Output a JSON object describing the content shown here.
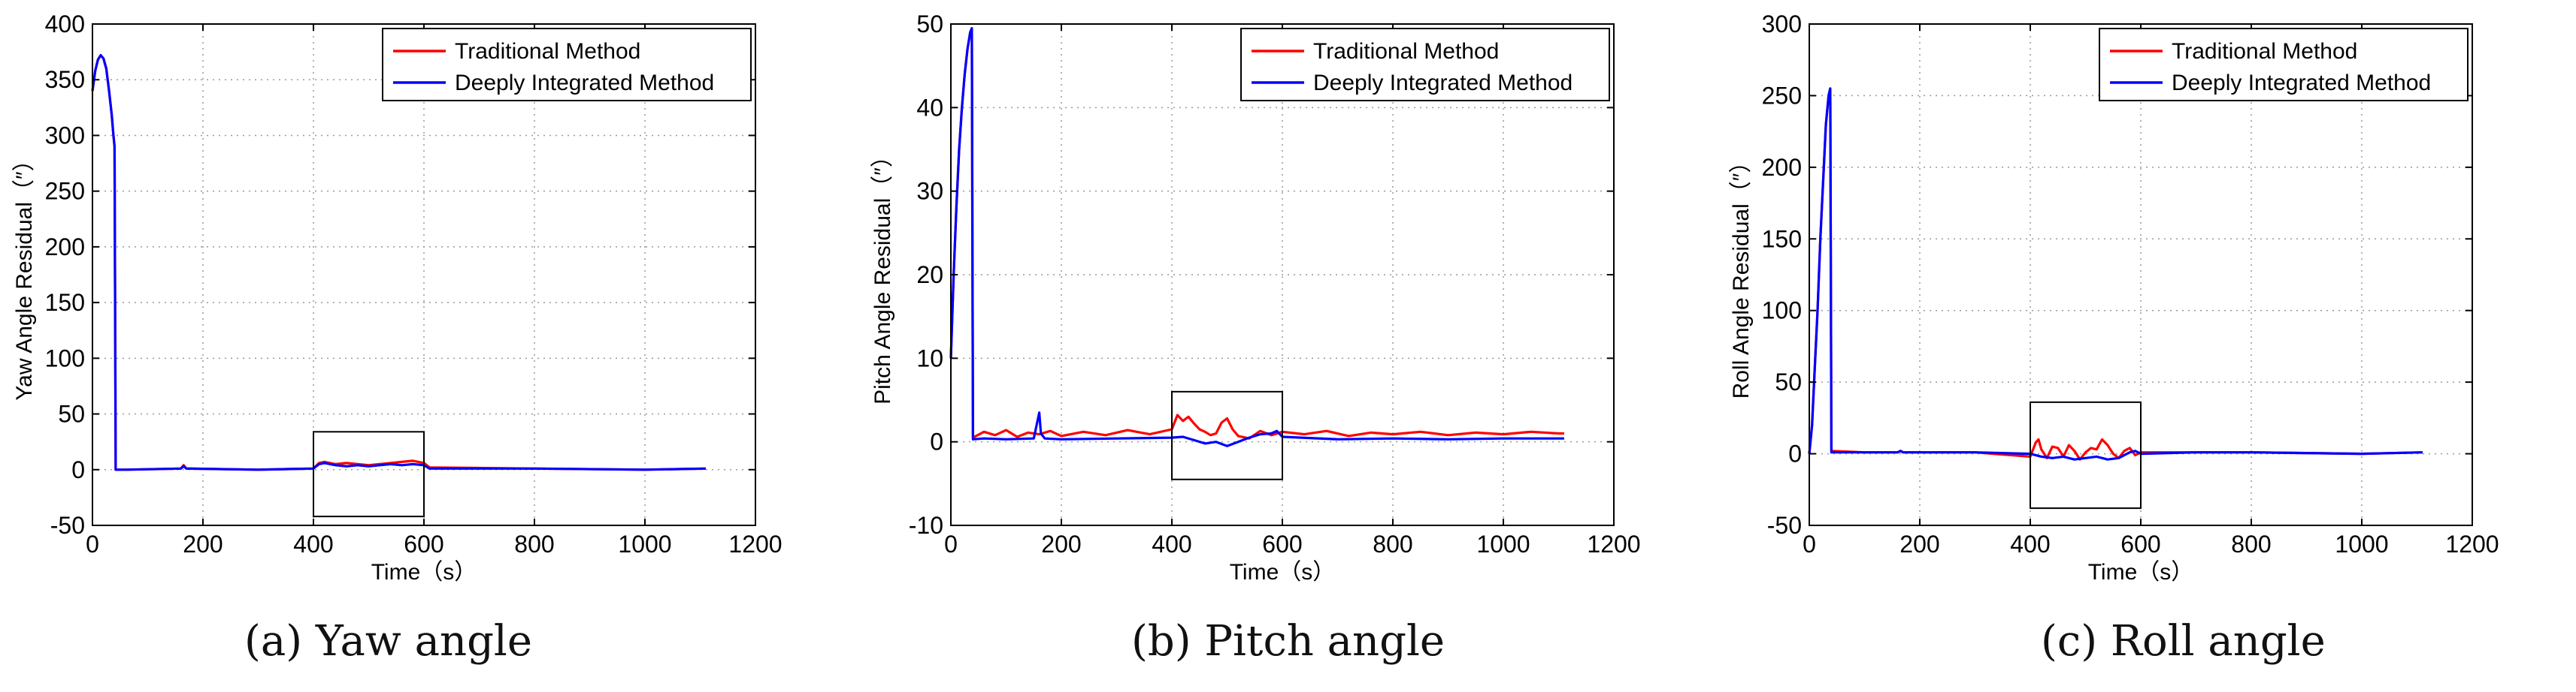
{
  "chart_data": [
    {
      "type": "line",
      "title": "",
      "xlabel": "Time（s）",
      "ylabel": "Yaw Angle Residual（″）",
      "xlim": [
        0,
        1200
      ],
      "ylim": [
        -50,
        400
      ],
      "xticks": [
        0,
        200,
        400,
        600,
        800,
        1000,
        1200
      ],
      "yticks": [
        -50,
        0,
        50,
        100,
        150,
        200,
        250,
        300,
        350,
        400
      ],
      "grid": true,
      "legend_position": "top-right",
      "zoom_box": {
        "x": [
          400,
          600
        ],
        "y": [
          -42,
          34
        ]
      },
      "caption": "(a)  Yaw angle",
      "series": [
        {
          "name": "Traditional Method",
          "color": "#ff0000",
          "x": [
            0,
            5,
            10,
            15,
            20,
            25,
            30,
            35,
            38,
            40,
            42,
            60,
            160,
            165,
            170,
            300,
            400,
            410,
            420,
            440,
            460,
            480,
            500,
            520,
            540,
            560,
            580,
            600,
            610,
            800,
            1000,
            1110
          ],
          "y": [
            340,
            358,
            368,
            372,
            369,
            360,
            340,
            318,
            300,
            290,
            0,
            0,
            1,
            4,
            1,
            0,
            1,
            6,
            7,
            5,
            6,
            5,
            4,
            5,
            6,
            7,
            8,
            6,
            2,
            1,
            0,
            1
          ]
        },
        {
          "name": "Deeply Integrated Method",
          "color": "#0000ff",
          "x": [
            0,
            5,
            10,
            15,
            20,
            25,
            30,
            35,
            38,
            40,
            42,
            60,
            160,
            165,
            170,
            300,
            400,
            410,
            420,
            440,
            460,
            480,
            500,
            520,
            540,
            560,
            580,
            600,
            610,
            800,
            1000,
            1110
          ],
          "y": [
            340,
            358,
            368,
            372,
            369,
            360,
            340,
            318,
            300,
            290,
            0,
            0,
            1,
            3,
            1,
            0,
            1,
            5,
            6,
            4,
            3,
            4,
            3,
            4,
            5,
            4,
            5,
            4,
            1,
            1,
            0,
            1
          ]
        }
      ]
    },
    {
      "type": "line",
      "title": "",
      "xlabel": "Time（s）",
      "ylabel": "Pitch Angle Residual（″）",
      "xlim": [
        0,
        1200
      ],
      "ylim": [
        -10,
        50
      ],
      "xticks": [
        0,
        200,
        400,
        600,
        800,
        1000,
        1200
      ],
      "yticks": [
        -10,
        0,
        10,
        20,
        30,
        40,
        50
      ],
      "grid": true,
      "legend_position": "top-right",
      "zoom_box": {
        "x": [
          400,
          600
        ],
        "y": [
          -4.5,
          6
        ]
      },
      "caption": "(b)  Pitch angle",
      "series": [
        {
          "name": "Traditional Method",
          "color": "#ff0000",
          "x": [
            0,
            5,
            10,
            15,
            20,
            25,
            30,
            35,
            38,
            40,
            60,
            80,
            100,
            120,
            140,
            160,
            180,
            200,
            240,
            280,
            320,
            360,
            400,
            410,
            420,
            430,
            440,
            450,
            460,
            470,
            480,
            490,
            500,
            510,
            520,
            540,
            560,
            580,
            600,
            640,
            680,
            720,
            760,
            800,
            850,
            900,
            950,
            1000,
            1050,
            1100,
            1110
          ],
          "y": [
            10,
            20,
            28,
            35,
            40,
            44,
            47,
            49,
            49.5,
            0.5,
            1.2,
            0.8,
            1.4,
            0.6,
            1.1,
            0.9,
            1.3,
            0.7,
            1.2,
            0.8,
            1.4,
            0.9,
            1.5,
            3.2,
            2.5,
            3.0,
            2.2,
            1.5,
            1.2,
            0.8,
            1.0,
            2.3,
            2.8,
            1.5,
            0.7,
            0.4,
            1.3,
            0.8,
            1.2,
            0.9,
            1.3,
            0.7,
            1.1,
            0.9,
            1.2,
            0.8,
            1.1,
            0.9,
            1.2,
            1.0,
            1.0
          ]
        },
        {
          "name": "Deeply Integrated Method",
          "color": "#0000ff",
          "x": [
            0,
            5,
            10,
            15,
            20,
            25,
            30,
            35,
            38,
            40,
            60,
            100,
            150,
            160,
            163,
            170,
            200,
            300,
            400,
            420,
            440,
            460,
            480,
            500,
            520,
            540,
            560,
            580,
            590,
            600,
            700,
            800,
            900,
            1000,
            1110
          ],
          "y": [
            10,
            20,
            28,
            35,
            40,
            44,
            47,
            49,
            49.5,
            0.3,
            0.4,
            0.3,
            0.4,
            3.5,
            1.0,
            0.4,
            0.3,
            0.4,
            0.5,
            0.6,
            0.2,
            -0.2,
            0.0,
            -0.5,
            0.0,
            0.5,
            0.9,
            1.0,
            1.3,
            0.6,
            0.3,
            0.4,
            0.3,
            0.4,
            0.4
          ]
        }
      ]
    },
    {
      "type": "line",
      "title": "",
      "xlabel": "Time（s）",
      "ylabel": "Roll Angle Residual（″）",
      "xlim": [
        0,
        1200
      ],
      "ylim": [
        -50,
        300
      ],
      "xticks": [
        0,
        200,
        400,
        600,
        800,
        1000,
        1200
      ],
      "yticks": [
        -50,
        0,
        50,
        100,
        150,
        200,
        250,
        300
      ],
      "grid": true,
      "legend_position": "top-right",
      "zoom_box": {
        "x": [
          400,
          600
        ],
        "y": [
          -38,
          36
        ]
      },
      "caption": "(c)  Roll angle",
      "series": [
        {
          "name": "Traditional Method",
          "color": "#ff0000",
          "x": [
            0,
            5,
            10,
            15,
            20,
            25,
            30,
            35,
            38,
            40,
            100,
            160,
            165,
            170,
            300,
            400,
            410,
            415,
            420,
            430,
            440,
            450,
            460,
            470,
            480,
            490,
            500,
            510,
            520,
            530,
            540,
            550,
            560,
            570,
            580,
            590,
            600,
            700,
            800,
            1000,
            1110
          ],
          "y": [
            0,
            20,
            60,
            100,
            150,
            190,
            230,
            250,
            255,
            2,
            1,
            1,
            2,
            1,
            1,
            -2,
            8,
            10,
            3,
            -3,
            5,
            4,
            -2,
            6,
            2,
            -4,
            1,
            4,
            3,
            10,
            6,
            0,
            -3,
            2,
            4,
            -1,
            1,
            1,
            1,
            0,
            1
          ]
        },
        {
          "name": "Deeply Integrated Method",
          "color": "#0000ff",
          "x": [
            0,
            5,
            10,
            15,
            20,
            25,
            30,
            35,
            38,
            40,
            100,
            160,
            165,
            170,
            300,
            400,
            420,
            440,
            460,
            480,
            500,
            520,
            540,
            560,
            580,
            590,
            600,
            700,
            800,
            1000,
            1110
          ],
          "y": [
            0,
            20,
            60,
            100,
            150,
            190,
            230,
            250,
            255,
            1,
            1,
            1,
            2,
            1,
            1,
            0,
            -2,
            -3,
            -2,
            -4,
            -3,
            -2,
            -4,
            -3,
            1,
            2,
            0,
            1,
            1,
            0,
            1
          ]
        }
      ]
    }
  ]
}
